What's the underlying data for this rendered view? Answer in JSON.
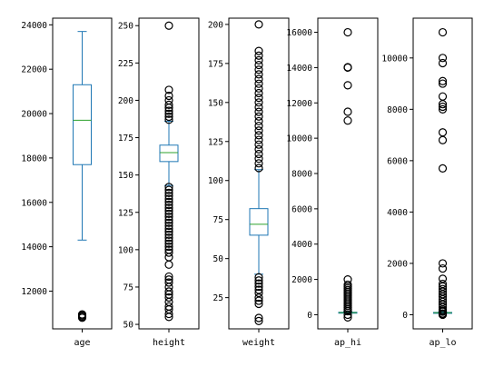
{
  "chart_data": [
    {
      "type": "box",
      "xlabel": "age",
      "ylim": [
        10300,
        24300
      ],
      "yticks": [
        12000,
        14000,
        16000,
        18000,
        20000,
        22000,
        24000
      ],
      "box": {
        "whisker_low": 14300,
        "q1": 17700,
        "median": 19700,
        "q3": 21300,
        "whisker_high": 23700
      },
      "outliers": [
        10800,
        10850,
        10900,
        10950
      ]
    },
    {
      "type": "box",
      "xlabel": "height",
      "ylim": [
        47,
        255
      ],
      "yticks": [
        50,
        75,
        100,
        125,
        150,
        175,
        200,
        225,
        250
      ],
      "box": {
        "whisker_low": 143,
        "q1": 159,
        "median": 165,
        "q3": 170,
        "whisker_high": 186
      },
      "outliers": [
        55,
        57,
        60,
        62,
        65,
        68,
        70,
        72,
        75,
        78,
        80,
        82,
        90,
        95,
        98,
        100,
        102,
        104,
        106,
        108,
        110,
        112,
        114,
        116,
        118,
        120,
        122,
        124,
        126,
        128,
        130,
        132,
        134,
        136,
        138,
        140,
        142,
        187,
        189,
        191,
        193,
        195,
        197,
        200,
        203,
        207,
        250
      ]
    },
    {
      "type": "box",
      "xlabel": "weight",
      "ylim": [
        5,
        204
      ],
      "yticks": [
        25,
        50,
        75,
        100,
        125,
        150,
        175,
        200
      ],
      "box": {
        "whisker_low": 40,
        "q1": 65,
        "median": 72,
        "q3": 82,
        "whisker_high": 107
      },
      "outliers": [
        10,
        12,
        21,
        23,
        25,
        28,
        30,
        32,
        34,
        36,
        38,
        108,
        111,
        114,
        117,
        120,
        123,
        126,
        129,
        132,
        135,
        138,
        141,
        144,
        147,
        150,
        153,
        156,
        159,
        162,
        165,
        168,
        171,
        174,
        177,
        180,
        183,
        200
      ]
    },
    {
      "type": "box",
      "xlabel": "ap_hi",
      "ylim": [
        -800,
        16800
      ],
      "yticks": [
        0,
        2000,
        4000,
        6000,
        8000,
        10000,
        12000,
        14000,
        16000
      ],
      "box": {
        "whisker_low": 90,
        "q1": 120,
        "median": 120,
        "q3": 140,
        "whisker_high": 170
      },
      "outliers": [
        -150,
        0,
        200,
        300,
        400,
        500,
        600,
        700,
        800,
        900,
        1000,
        1100,
        1200,
        1300,
        1400,
        1500,
        1600,
        1700,
        2000,
        11000,
        11500,
        13000,
        14000,
        14020,
        16000
      ]
    },
    {
      "type": "box",
      "xlabel": "ap_lo",
      "ylim": [
        -550,
        11550
      ],
      "yticks": [
        0,
        2000,
        4000,
        6000,
        8000,
        10000
      ],
      "box": {
        "whisker_low": 65,
        "q1": 80,
        "median": 80,
        "q3": 90,
        "whisker_high": 105
      },
      "outliers": [
        0,
        20,
        40,
        50,
        120,
        150,
        200,
        300,
        400,
        500,
        600,
        700,
        800,
        900,
        1000,
        1100,
        1200,
        1400,
        1800,
        2000,
        5700,
        6800,
        7100,
        8000,
        8100,
        8200,
        8500,
        9000,
        9100,
        9800,
        10000,
        11000
      ]
    }
  ],
  "colors": {
    "box": "#1f77b4",
    "median": "#2ca02c",
    "outlier": "#000000",
    "frame": "#000000"
  }
}
